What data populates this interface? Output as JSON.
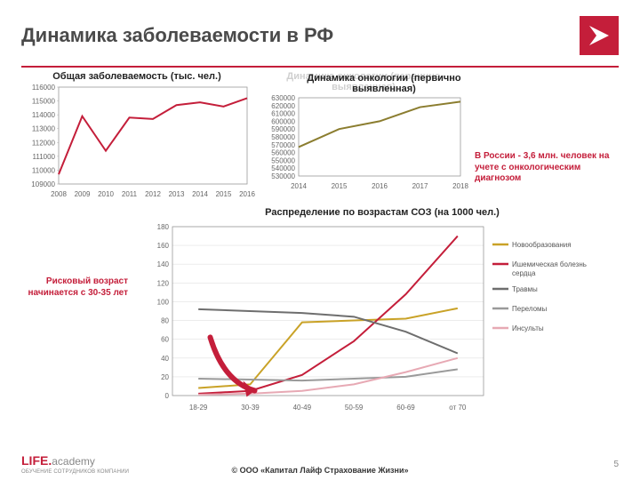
{
  "page": {
    "title": "Динамика заболеваемости в РФ",
    "copyright": "© ООО «Капитал Лайф Страхование Жизни»",
    "page_number": "5",
    "logo_text": "LIFE",
    "logo_suffix": "academy",
    "logo_tagline": "ОБУЧЕНИЕ СОТРУДНИКОВ КОМПАНИИ"
  },
  "chart1": {
    "type": "line",
    "title": "Общая заболеваемость (тыс. чел.)",
    "x": [
      "2008",
      "2009",
      "2010",
      "2011",
      "2012",
      "2013",
      "2014",
      "2015",
      "2016"
    ],
    "y": [
      109700,
      113900,
      111400,
      113800,
      113700,
      114700,
      114900,
      114600,
      115200
    ],
    "ylim": [
      109000,
      116000
    ],
    "ytick_step": 1000,
    "line_color": "#c41e3a",
    "line_width": 2,
    "axis_color": "#999999",
    "label_fontsize": 8
  },
  "chart2": {
    "type": "line",
    "title_ghost": "Динамика онкологии (первично выявленная)",
    "title": "Динамика онкологии (первично выявленная)",
    "x": [
      "2014",
      "2015",
      "2016",
      "2017",
      "2018"
    ],
    "y": [
      567000,
      590000,
      600000,
      618000,
      625000
    ],
    "ylim": [
      530000,
      630000
    ],
    "ytick_step": 10000,
    "line_color": "#8b7d2f",
    "line_width": 2,
    "axis_color": "#999999",
    "note": "В России - 3,6 млн. человек на учете с онкологическим диагнозом"
  },
  "chart3": {
    "type": "line",
    "title": "Распределение по возрастам СОЗ (на 1000 чел.)",
    "x": [
      "18-29",
      "30-39",
      "40-49",
      "50-59",
      "60-69",
      "от 70"
    ],
    "ylim": [
      0,
      180
    ],
    "ytick_step": 20,
    "series": [
      {
        "name": "Новообразования",
        "color": "#c9a227",
        "values": [
          8,
          12,
          78,
          80,
          82,
          93
        ]
      },
      {
        "name": "Ишемическая болезнь сердца",
        "color": "#c41e3a",
        "values": [
          2,
          5,
          22,
          58,
          108,
          170
        ]
      },
      {
        "name": "Травмы",
        "color": "#6e6e6e",
        "values": [
          92,
          90,
          88,
          84,
          68,
          45
        ]
      },
      {
        "name": "Переломы",
        "color": "#9a9a9a",
        "values": [
          18,
          17,
          16,
          18,
          20,
          28
        ]
      },
      {
        "name": "Инсульты",
        "color": "#e7a9b4",
        "values": [
          1,
          2,
          5,
          12,
          25,
          40
        ]
      }
    ],
    "side_note": "Рисковый возраст начинается с 30-35 лет",
    "arrow_color": "#c41e3a",
    "grid_color": "#e0e0e0",
    "border_color": "#999999"
  }
}
